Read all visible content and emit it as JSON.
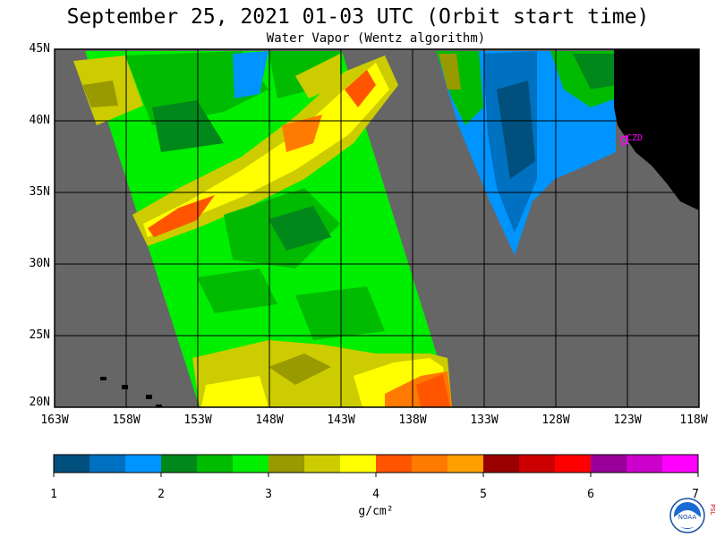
{
  "title": "September 25, 2021  01-03 UTC  (Orbit start time)",
  "subtitle": "Water Vapor (Wentz algorithm)",
  "station_label": "CZD",
  "lat_labels": [
    "45N",
    "40N",
    "35N",
    "30N",
    "25N",
    "20N"
  ],
  "lon_labels": [
    "163W",
    "158W",
    "153W",
    "148W",
    "143W",
    "138W",
    "133W",
    "128W",
    "123W",
    "118W"
  ],
  "colorbar": {
    "unit": "g/cm²",
    "ticks": [
      "1",
      "2",
      "3",
      "4",
      "5",
      "6",
      "7"
    ],
    "colors": [
      "#004f7c",
      "#0070c0",
      "#0094ff",
      "#00881a",
      "#00bb00",
      "#00ee00",
      "#999900",
      "#cccc00",
      "#ffff00",
      "#ff5500",
      "#ff7a00",
      "#ff9f00",
      "#990000",
      "#cc0000",
      "#ff0000",
      "#990099",
      "#cc00cc",
      "#ff00ff"
    ]
  },
  "logo": {
    "icon": "noaa-logo-icon",
    "side_text": "PSL"
  },
  "map_colors": {
    "no_data": "#666666",
    "land": "#000000",
    "station": "#ff00ff"
  }
}
